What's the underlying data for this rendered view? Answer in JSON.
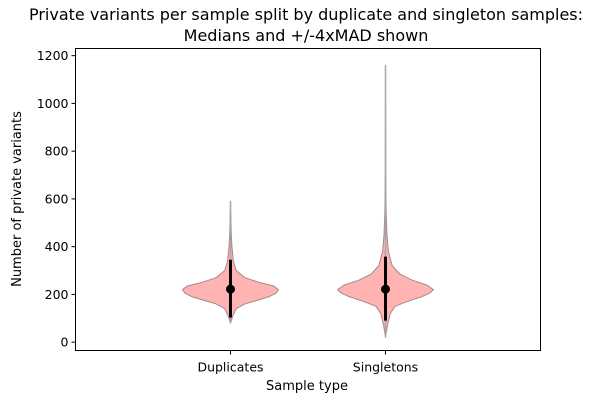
{
  "chart_data": {
    "type": "violin",
    "title_lines": [
      "Private variants per sample split by duplicate and singleton samples:",
      "Medians and +/-4xMAD shown"
    ],
    "xlabel": "Sample type",
    "ylabel": "Number of private variants",
    "categories": [
      "Duplicates",
      "Singletons"
    ],
    "ylim": [
      -35,
      1230
    ],
    "yticks": [
      0,
      200,
      400,
      600,
      800,
      1000,
      1200
    ],
    "grid": false,
    "series": [
      {
        "category": "Duplicates",
        "min": 80,
        "max": 590,
        "median": 222,
        "mad4_low": 103,
        "mad4_high": 345,
        "density_profile": [
          [
            80,
            0.0
          ],
          [
            110,
            0.05
          ],
          [
            140,
            0.12
          ],
          [
            160,
            0.3
          ],
          [
            175,
            0.55
          ],
          [
            190,
            0.8
          ],
          [
            205,
            0.95
          ],
          [
            220,
            1.0
          ],
          [
            235,
            0.9
          ],
          [
            250,
            0.6
          ],
          [
            270,
            0.3
          ],
          [
            300,
            0.12
          ],
          [
            340,
            0.06
          ],
          [
            400,
            0.03
          ],
          [
            460,
            0.015
          ],
          [
            590,
            0.0
          ]
        ]
      },
      {
        "category": "Singletons",
        "min": 20,
        "max": 1160,
        "median": 222,
        "mad4_low": 90,
        "mad4_high": 358,
        "density_profile": [
          [
            20,
            0.0
          ],
          [
            70,
            0.04
          ],
          [
            120,
            0.1
          ],
          [
            150,
            0.2
          ],
          [
            170,
            0.45
          ],
          [
            190,
            0.75
          ],
          [
            205,
            0.92
          ],
          [
            220,
            1.0
          ],
          [
            240,
            0.85
          ],
          [
            260,
            0.55
          ],
          [
            285,
            0.3
          ],
          [
            320,
            0.14
          ],
          [
            380,
            0.06
          ],
          [
            450,
            0.03
          ],
          [
            560,
            0.012
          ],
          [
            700,
            0.005
          ],
          [
            1160,
            0.0
          ]
        ]
      }
    ],
    "colors": {
      "violin_fill": "#ffb3b3",
      "violin_edge": "#a38a8a",
      "range_line": "#a8a8a8",
      "mad_bar": "#000000",
      "median_dot": "#000000"
    }
  }
}
